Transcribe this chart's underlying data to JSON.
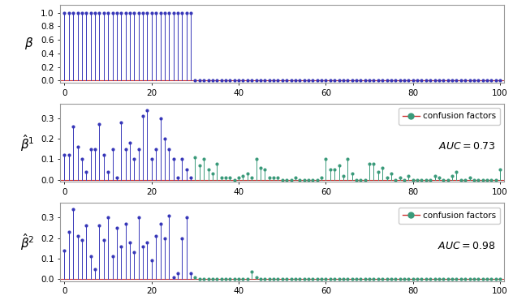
{
  "n": 101,
  "beta_cutoff": 30,
  "beta_value": 1.0,
  "auc1": 0.73,
  "auc2": 0.98,
  "beta1_values": [
    0.12,
    0.12,
    0.26,
    0.16,
    0.1,
    0.04,
    0.15,
    0.15,
    0.27,
    0.12,
    0.04,
    0.15,
    0.01,
    0.28,
    0.15,
    0.18,
    0.1,
    0.15,
    0.31,
    0.34,
    0.1,
    0.15,
    0.3,
    0.2,
    0.15,
    0.1,
    0.01,
    0.1,
    0.05,
    0.01,
    0.11,
    0.07,
    0.1,
    0.05,
    0.03,
    0.08,
    0.01,
    0.01,
    0.01,
    0.0,
    0.01,
    0.02,
    0.03,
    0.01,
    0.1,
    0.06,
    0.05,
    0.01,
    0.01,
    0.01,
    0.0,
    0.0,
    0.0,
    0.01,
    0.0,
    0.0,
    0.0,
    0.0,
    0.0,
    0.01,
    0.1,
    0.05,
    0.05,
    0.07,
    0.02,
    0.1,
    0.03,
    0.0,
    0.0,
    0.0,
    0.08,
    0.08,
    0.04,
    0.06,
    0.01,
    0.03,
    0.0,
    0.01,
    0.0,
    0.02,
    0.0,
    0.0,
    0.0,
    0.0,
    0.0,
    0.02,
    0.01,
    0.0,
    0.0,
    0.02,
    0.04,
    0.0,
    0.0,
    0.01,
    0.0,
    0.0,
    0.0,
    0.0,
    0.0,
    0.0,
    0.05
  ],
  "beta2_values": [
    0.14,
    0.23,
    0.34,
    0.21,
    0.19,
    0.26,
    0.11,
    0.05,
    0.26,
    0.19,
    0.3,
    0.11,
    0.25,
    0.16,
    0.27,
    0.18,
    0.13,
    0.3,
    0.16,
    0.18,
    0.09,
    0.21,
    0.27,
    0.2,
    0.31,
    0.01,
    0.03,
    0.2,
    0.3,
    0.03,
    0.01,
    0.0,
    0.0,
    0.0,
    0.0,
    0.0,
    0.0,
    0.0,
    0.0,
    0.0,
    0.0,
    0.0,
    0.0,
    0.035,
    0.01,
    0.0,
    0.0,
    0.0,
    0.0,
    0.0,
    0.0,
    0.0,
    0.0,
    0.0,
    0.0,
    0.0,
    0.0,
    0.0,
    0.0,
    0.0,
    0.0,
    0.0,
    0.0,
    0.0,
    0.0,
    0.0,
    0.0,
    0.0,
    0.0,
    0.0,
    0.0,
    0.0,
    0.0,
    0.0,
    0.0,
    0.0,
    0.0,
    0.0,
    0.0,
    0.0,
    0.0,
    0.0,
    0.0,
    0.0,
    0.0,
    0.0,
    0.0,
    0.0,
    0.0,
    0.0,
    0.0,
    0.0,
    0.0,
    0.0,
    0.0,
    0.0,
    0.0,
    0.0,
    0.0,
    0.0,
    0.0
  ],
  "blue_color": "#3636b8",
  "green_color": "#3a9a7a",
  "red_color": "#cc3333",
  "bg_color": "#ffffff",
  "spine_color": "#999999",
  "ylabel_fontsize": 11,
  "tick_fontsize": 7.5,
  "auc_fontsize": 9,
  "legend_fontsize": 7.5
}
